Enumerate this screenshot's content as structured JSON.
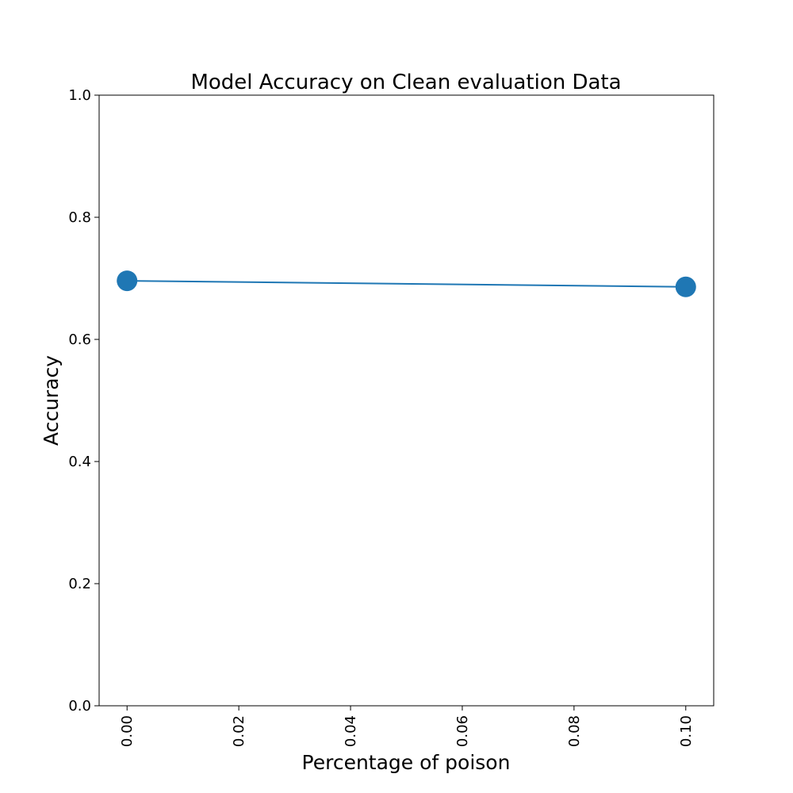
{
  "chart_data": {
    "type": "line",
    "title": "Model Accuracy on Clean evaluation Data",
    "xlabel": "Percentage of poison",
    "ylabel": "Accuracy",
    "x": [
      0.0,
      0.1
    ],
    "series": [
      {
        "values": [
          0.696,
          0.686
        ]
      }
    ],
    "xlim": [
      -0.005,
      0.105
    ],
    "ylim": [
      0.0,
      1.0
    ],
    "xticks": [
      "0.00",
      "0.02",
      "0.04",
      "0.06",
      "0.08",
      "0.10"
    ],
    "yticks": [
      "0.0",
      "0.2",
      "0.4",
      "0.6",
      "0.8",
      "1.0"
    ],
    "grid": false,
    "line_color": "#1f77b4",
    "marker_color": "#1f77b4"
  }
}
